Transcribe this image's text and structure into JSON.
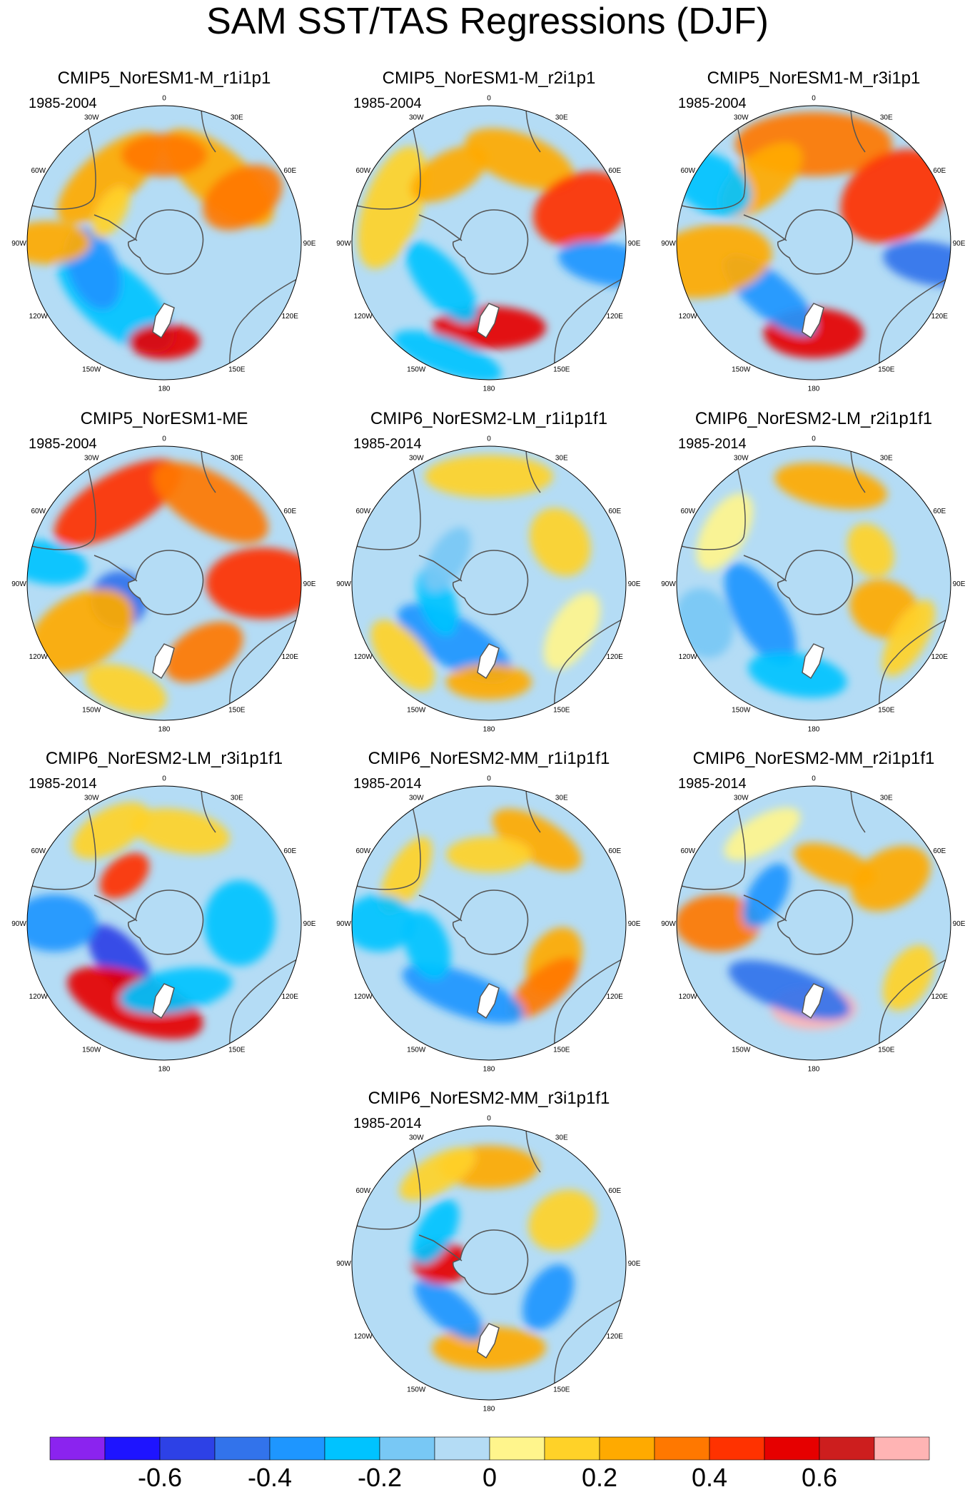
{
  "title": "SAM SST/TAS Regressions (DJF)",
  "lon_labels": [
    "0",
    "30E",
    "60E",
    "90E",
    "120E",
    "150E",
    "180",
    "150W",
    "120W",
    "90W",
    "60W",
    "30W"
  ],
  "panels": [
    {
      "title": "CMIP5_NorESM1-M_r1i1p1",
      "period": "1985-2004"
    },
    {
      "title": "CMIP5_NorESM1-M_r2i1p1",
      "period": "1985-2004"
    },
    {
      "title": "CMIP5_NorESM1-M_r3i1p1",
      "period": "1985-2004"
    },
    {
      "title": "CMIP5_NorESM1-ME",
      "period": "1985-2004"
    },
    {
      "title": "CMIP6_NorESM2-LM_r1i1p1f1",
      "period": "1985-2014"
    },
    {
      "title": "CMIP6_NorESM2-LM_r2i1p1f1",
      "period": "1985-2014"
    },
    {
      "title": "CMIP6_NorESM2-LM_r3i1p1f1",
      "period": "1985-2014"
    },
    {
      "title": "CMIP6_NorESM2-MM_r1i1p1f1",
      "period": "1985-2014"
    },
    {
      "title": "CMIP6_NorESM2-MM_r2i1p1f1",
      "period": "1985-2014"
    },
    {
      "title": "CMIP6_NorESM2-MM_r3i1p1f1",
      "period": "1985-2014"
    }
  ],
  "colorbar": {
    "colors": [
      "#8B23EF",
      "#1E14FF",
      "#2D41E6",
      "#3273EB",
      "#1E96FF",
      "#00C3FF",
      "#78C8F5",
      "#B4DCF5",
      "#FFF58C",
      "#FFD228",
      "#FFAA00",
      "#FF7800",
      "#FF3200",
      "#E60000",
      "#CD1E1E",
      "#FFB4B4"
    ],
    "labels": [
      "-0.6",
      "-0.4",
      "-0.2",
      "0",
      "0.2",
      "0.4",
      "0.6"
    ]
  },
  "colors": {
    "ocean_base": "#B4DCF5",
    "antarctica": "#B4DCF5",
    "coast": "#555555"
  }
}
